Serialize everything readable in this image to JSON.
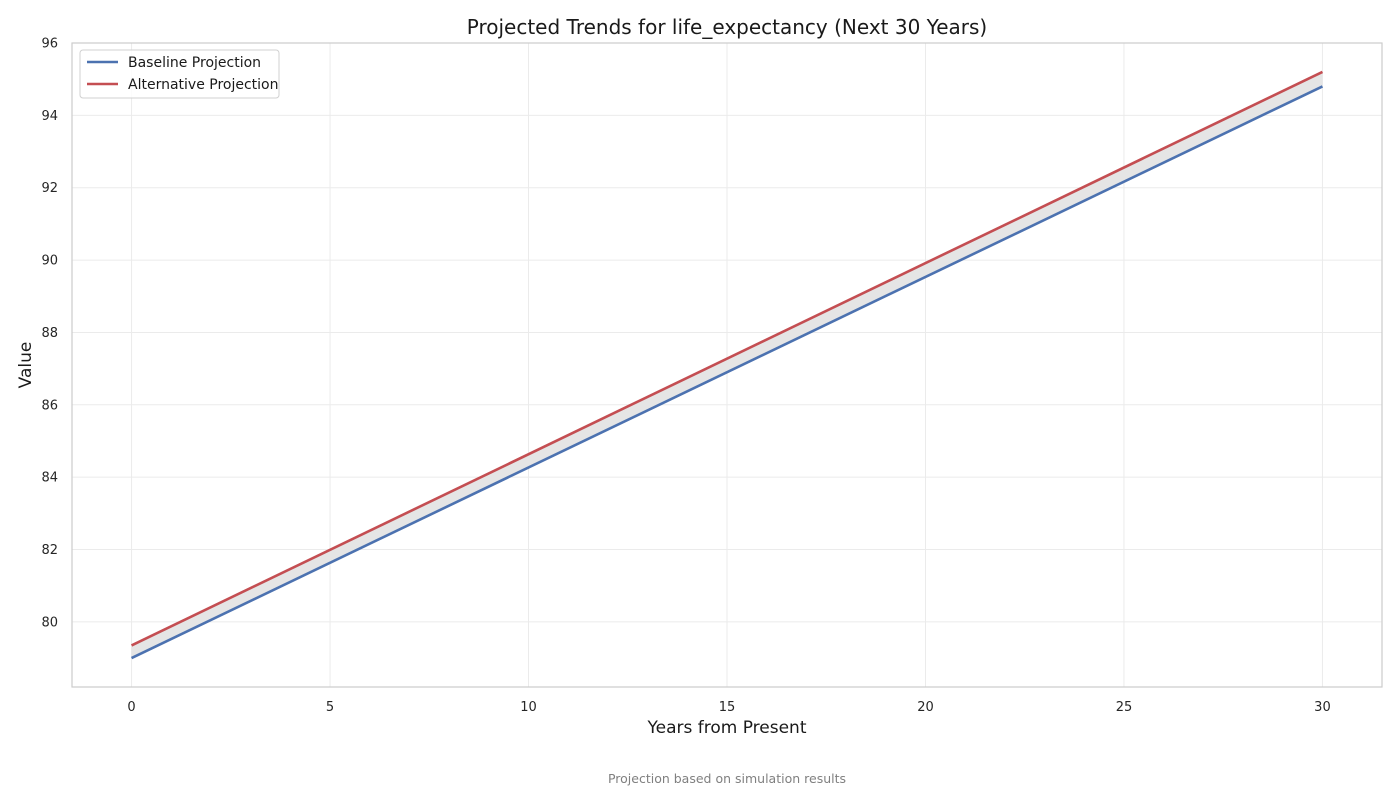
{
  "chart_data": {
    "type": "line",
    "title": "Projected Trends for life_expectancy (Next 30 Years)",
    "xlabel": "Years from Present",
    "ylabel": "Value",
    "x": [
      0,
      30
    ],
    "xlim": [
      -1.5,
      31.5
    ],
    "ylim": [
      78.2,
      96
    ],
    "xticks": [
      0,
      5,
      10,
      15,
      20,
      25,
      30
    ],
    "yticks": [
      80,
      82,
      84,
      86,
      88,
      90,
      92,
      94,
      96
    ],
    "grid": true,
    "legend_position": "top-left",
    "fill_between_series": true,
    "series": [
      {
        "name": "Baseline Projection",
        "color": "#4c72b0",
        "values": [
          79.0,
          94.8
        ]
      },
      {
        "name": "Alternative Projection",
        "color": "#c44e52",
        "values": [
          79.35,
          95.2
        ]
      }
    ],
    "fill_color": "#e5e5e5",
    "footnote": "Projection based on simulation results"
  }
}
